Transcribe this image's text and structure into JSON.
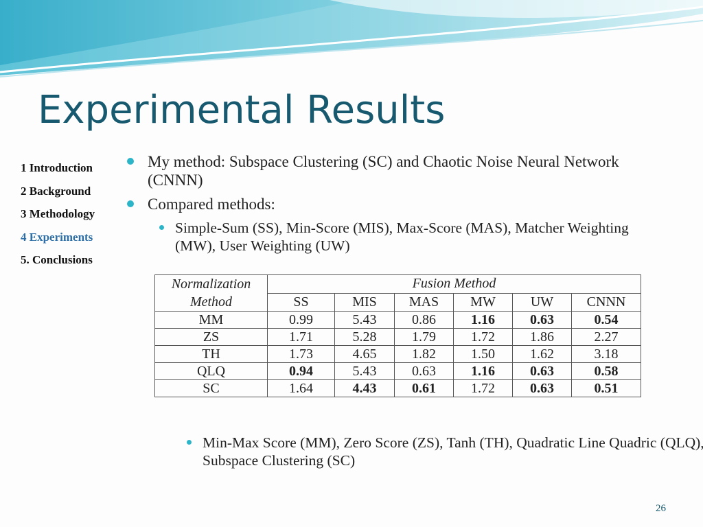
{
  "title": "Experimental Results",
  "sidebar": {
    "items": [
      "1 Introduction",
      "2 Background",
      "3 Methodology",
      "4 Experiments",
      "5. Conclusions"
    ],
    "active_index": 3
  },
  "bullets": [
    {
      "level": 1,
      "text": "My method: Subspace Clustering (SC) and Chaotic Noise Neural Network (CNNN)"
    },
    {
      "level": 1,
      "text": "Compared methods:"
    },
    {
      "level": 2,
      "text": "Simple-Sum (SS), Min-Score (MIS), Max-Score (MAS), Matcher Weighting (MW), User Weighting (UW)"
    }
  ],
  "table": {
    "corner": "Normalization Method",
    "group": "Fusion Method",
    "columns": [
      "SS",
      "MIS",
      "MAS",
      "MW",
      "UW",
      "CNNN"
    ],
    "rows": [
      {
        "name": "MM",
        "cells": [
          "0.99",
          "5.43",
          "0.86",
          "1.16",
          "0.63",
          "0.54"
        ],
        "bold": [
          false,
          false,
          false,
          true,
          true,
          true
        ]
      },
      {
        "name": "ZS",
        "cells": [
          "1.71",
          "5.28",
          "1.79",
          "1.72",
          "1.86",
          "2.27"
        ],
        "bold": [
          false,
          false,
          false,
          false,
          false,
          false
        ]
      },
      {
        "name": "TH",
        "cells": [
          "1.73",
          "4.65",
          "1.82",
          "1.50",
          "1.62",
          "3.18"
        ],
        "bold": [
          false,
          false,
          false,
          false,
          false,
          false
        ]
      },
      {
        "name": "QLQ",
        "cells": [
          "0.94",
          "5.43",
          "0.63",
          "1.16",
          "0.63",
          "0.58"
        ],
        "bold": [
          true,
          false,
          false,
          true,
          true,
          true
        ]
      },
      {
        "name": "SC",
        "cells": [
          "1.64",
          "4.43",
          "0.61",
          "1.72",
          "0.63",
          "0.51"
        ],
        "bold": [
          false,
          true,
          true,
          false,
          true,
          true
        ]
      }
    ]
  },
  "footnote": "Min-Max Score (MM), Zero Score (ZS), Tanh (TH), Quadratic Line Quadric (QLQ), Subspace Clustering (SC)",
  "page_number": "26"
}
